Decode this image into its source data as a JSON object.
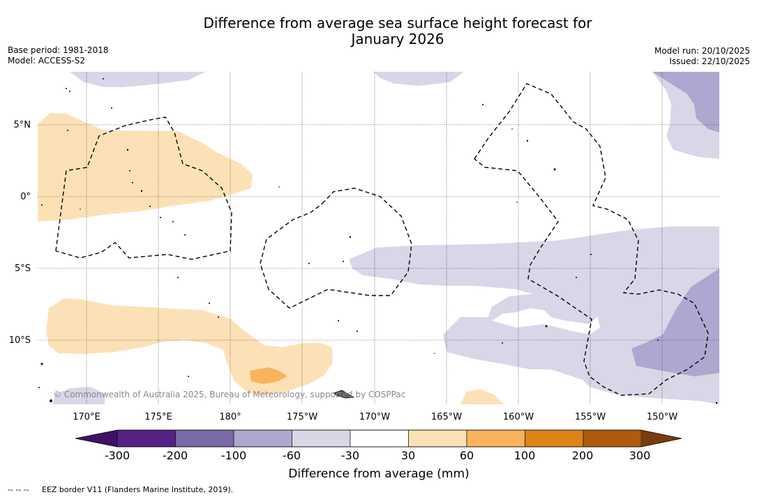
{
  "header": {
    "title_line1": "Difference from average sea surface height forecast for",
    "title_line2": "January 2026",
    "base_period": "Base period: 1981-2018",
    "model": "Model: ACCESS-S2",
    "model_run": "Model run: 20/10/2025",
    "issued": "Issued: 22/10/2025"
  },
  "map": {
    "lat_labels": [
      "5°N",
      "0°",
      "5°S",
      "10°S"
    ],
    "lon_labels": [
      "170°E",
      "175°E",
      "180°",
      "175°W",
      "170°W",
      "165°W",
      "160°W",
      "155°W",
      "150°W"
    ],
    "credit": "© Commonwealth of Australia 2025, Bureau of Meteorology, supported by COSPPac"
  },
  "legend": {
    "ticks": [
      "-300",
      "-200",
      "-100",
      "-60",
      "-30",
      "30",
      "60",
      "100",
      "200",
      "300"
    ],
    "label": "Difference from average (mm)",
    "colors": [
      "#3f1068",
      "#562184",
      "#7b6aa8",
      "#aea7cf",
      "#d7d7e8",
      "#ffffff",
      "#fde1b6",
      "#f9b45b",
      "#df8316",
      "#b05a0e",
      "#7a3c0c"
    ],
    "eez_symbol": "-- -- --",
    "eez_note": "EEZ border V11 (Flanders Marine Institute, 2019)."
  }
}
